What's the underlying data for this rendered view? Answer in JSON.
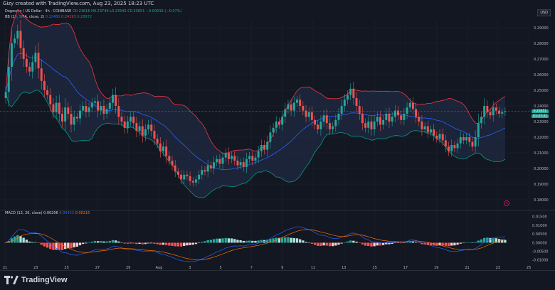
{
  "header": {
    "caption": "Gizy created with TradingView.com, Aug 23, 2025 18:23 UTC",
    "symbol": "Dogecoin / US Dollar · 4h · COINBASE",
    "ohlc": "O0.23616  H0.23749  L0.23542  C0.23651  −0.00016 (−0.07%)",
    "bb_label": "BB (20, SMA, close, 2)",
    "bb_basis": "0.22480",
    "bb_upper": "0.24193",
    "bb_lower": "0.20972",
    "macd_label": "MACD (12, 26, close)",
    "macd_hist": "0.00206",
    "macd_line": "0.00422",
    "macd_signal": "0.00215",
    "currency_button": "USD"
  },
  "price_tags": {
    "last": "0.23651",
    "countdown": "01:37:41"
  },
  "footer": {
    "brand": "TradingView"
  },
  "colors": {
    "background": "#131722",
    "up": "#26a69a",
    "down": "#ef5350",
    "bb_basis": "#2962ff",
    "bb_upper": "#f23645",
    "bb_lower": "#089981",
    "bb_fill": "#22304a",
    "macd_line": "#2962ff",
    "signal_line": "#ff6d00"
  },
  "chart_data": {
    "type": "candlestick",
    "xlabel": "",
    "ylabel": "",
    "x_ticks": [
      "21",
      "23",
      "25",
      "27",
      "29",
      "Aug",
      "3",
      "5",
      "7",
      "9",
      "11",
      "13",
      "15",
      "17",
      "19",
      "21",
      "23",
      "25"
    ],
    "y_ticks": [
      "0.29000",
      "0.28000",
      "0.27000",
      "0.26000",
      "0.25000",
      "0.24000",
      "0.23000",
      "0.22000",
      "0.21000",
      "0.20000",
      "0.19000",
      "0.18000"
    ],
    "ylim": [
      0.175,
      0.295
    ],
    "macd_y_ticks": [
      "0.01500",
      "0.01000",
      "0.00500",
      "0.00000",
      "-0.00500",
      "-0.01000"
    ],
    "macd_ylim": [
      -0.0125,
      0.017
    ],
    "last_price": 0.23651,
    "close": [
      0.249,
      0.265,
      0.28,
      0.283,
      0.288,
      0.277,
      0.27,
      0.265,
      0.262,
      0.268,
      0.274,
      0.264,
      0.256,
      0.25,
      0.247,
      0.241,
      0.236,
      0.242,
      0.235,
      0.23,
      0.239,
      0.235,
      0.228,
      0.233,
      0.232,
      0.237,
      0.24,
      0.236,
      0.239,
      0.242,
      0.243,
      0.237,
      0.24,
      0.235,
      0.238,
      0.242,
      0.247,
      0.24,
      0.233,
      0.23,
      0.226,
      0.23,
      0.233,
      0.229,
      0.224,
      0.227,
      0.221,
      0.225,
      0.228,
      0.224,
      0.219,
      0.216,
      0.211,
      0.214,
      0.208,
      0.205,
      0.202,
      0.198,
      0.196,
      0.193,
      0.196,
      0.195,
      0.192,
      0.191,
      0.193,
      0.196,
      0.199,
      0.198,
      0.202,
      0.2,
      0.204,
      0.206,
      0.203,
      0.207,
      0.21,
      0.206,
      0.208,
      0.205,
      0.202,
      0.204,
      0.201,
      0.206,
      0.208,
      0.205,
      0.207,
      0.211,
      0.215,
      0.212,
      0.217,
      0.223,
      0.226,
      0.23,
      0.228,
      0.233,
      0.238,
      0.241,
      0.237,
      0.242,
      0.244,
      0.24,
      0.237,
      0.233,
      0.236,
      0.231,
      0.228,
      0.225,
      0.23,
      0.234,
      0.229,
      0.225,
      0.227,
      0.231,
      0.235,
      0.24,
      0.244,
      0.247,
      0.251,
      0.245,
      0.24,
      0.235,
      0.229,
      0.226,
      0.23,
      0.225,
      0.23,
      0.233,
      0.228,
      0.231,
      0.235,
      0.23,
      0.233,
      0.237,
      0.234,
      0.231,
      0.235,
      0.239,
      0.242,
      0.238,
      0.233,
      0.23,
      0.225,
      0.227,
      0.223,
      0.225,
      0.221,
      0.219,
      0.222,
      0.218,
      0.214,
      0.211,
      0.215,
      0.213,
      0.216,
      0.22,
      0.218,
      0.22,
      0.217,
      0.214,
      0.22,
      0.229,
      0.233,
      0.24,
      0.236,
      0.234,
      0.239,
      0.237,
      0.235,
      0.236,
      0.23651
    ]
  }
}
